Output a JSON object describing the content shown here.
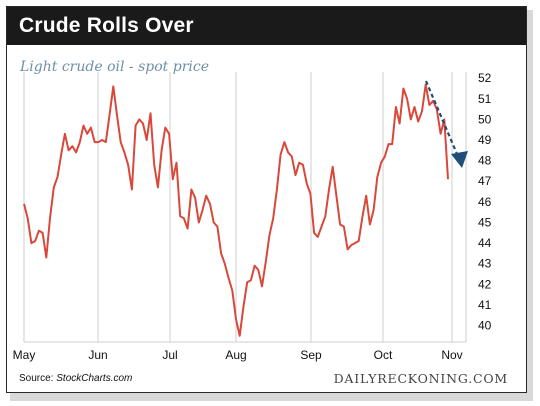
{
  "header": {
    "title": "Crude Rolls Over",
    "subtitle": "Light crude oil - spot price"
  },
  "footer": {
    "source_label": "Source: ",
    "source_name": "StockCharts.com",
    "brand": "DAILYRECKONING.COM"
  },
  "colors": {
    "line": "#d9483b",
    "arrow": "#1f4e79",
    "banner": "#1a1a1a",
    "subtitle": "#6f8fa6"
  },
  "chart_data": {
    "type": "line",
    "title": "Light crude oil - spot price",
    "x_tick_labels": [
      "May",
      "Jun",
      "Jul",
      "Aug",
      "Sep",
      "Oct",
      "Nov"
    ],
    "y_ticks": [
      40,
      41,
      42,
      43,
      44,
      45,
      46,
      47,
      48,
      49,
      50,
      51,
      52
    ],
    "ylim": [
      39.2,
      52.3
    ],
    "grid": true,
    "series": [
      {
        "values": [
          45.9,
          45.2,
          44.0,
          44.1,
          44.6,
          44.5,
          43.3,
          45.2,
          46.7,
          47.2,
          48.3,
          49.3,
          48.5,
          48.7,
          48.4,
          48.9,
          49.7,
          49.3,
          49.6,
          48.9,
          48.9,
          49.0,
          48.9,
          50.2,
          51.6,
          50.2,
          48.9,
          48.4,
          47.8,
          46.6,
          49.7,
          50.0,
          49.8,
          49.0,
          50.3,
          47.8,
          46.7,
          48.5,
          49.6,
          49.3,
          47.1,
          47.9,
          45.3,
          45.2,
          44.7,
          46.6,
          46.2,
          45.0,
          45.6,
          46.3,
          45.9,
          45.0,
          44.8,
          43.5,
          43.0,
          42.3,
          41.7,
          40.3,
          39.5,
          40.9,
          42.1,
          42.2,
          42.9,
          42.7,
          41.9,
          43.1,
          44.4,
          45.2,
          46.6,
          48.3,
          48.9,
          48.4,
          48.2,
          47.3,
          47.9,
          47.8,
          46.9,
          46.4,
          44.5,
          44.3,
          44.8,
          45.3,
          46.6,
          47.7,
          46.3,
          44.9,
          44.8,
          43.7,
          43.9,
          44.0,
          44.1,
          45.3,
          46.3,
          44.9,
          45.6,
          47.2,
          47.9,
          48.2,
          48.8,
          48.8,
          50.6,
          49.8,
          51.5,
          51.0,
          50.0,
          50.6,
          49.9,
          50.4,
          51.7,
          50.7,
          50.9,
          50.5,
          49.3,
          50.0,
          47.1
        ]
      }
    ],
    "annotations": [
      "downward trend arrow at end of series"
    ]
  }
}
